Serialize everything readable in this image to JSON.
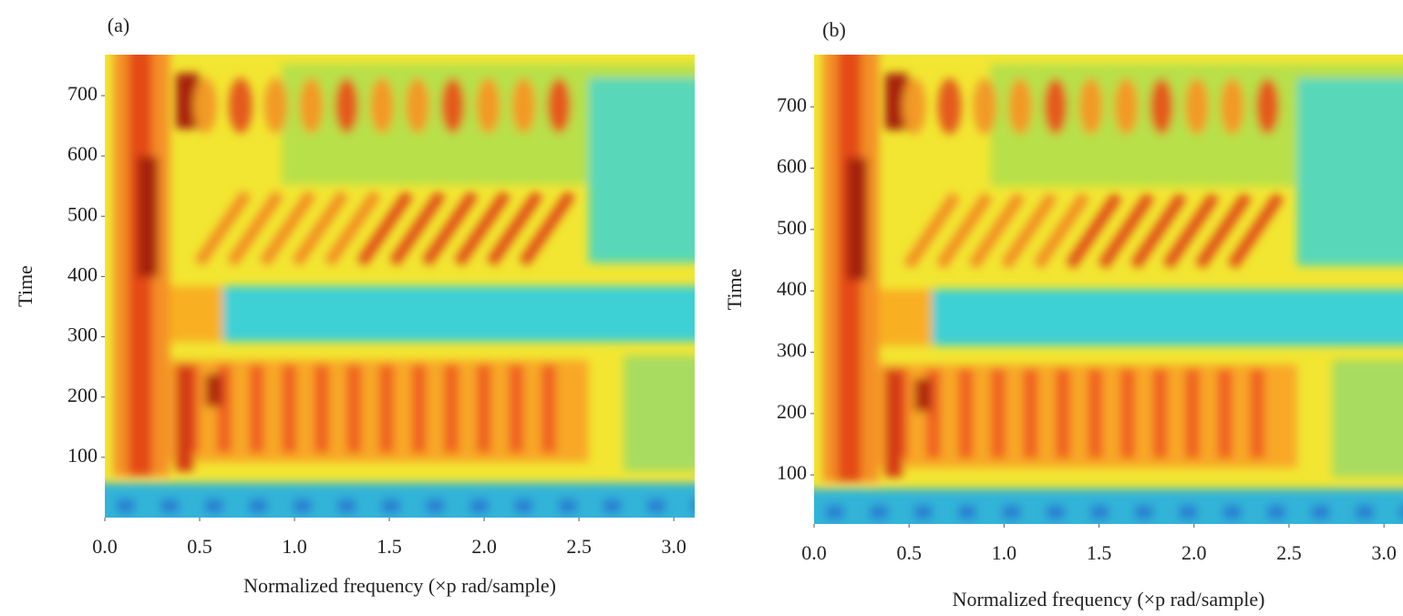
{
  "chart_data": [
    {
      "type": "spectrogram",
      "title": "(a)",
      "x_label": "Normalized frequency (×p rad/sample)",
      "y_label": "Time",
      "xlim": [
        0,
        3.11
      ],
      "ylim": [
        0,
        768
      ],
      "xticks": [
        {
          "value": 0,
          "label": "0.0"
        },
        0.5,
        {
          "value": 1,
          "label": "1.0"
        },
        1.5,
        {
          "value": 2,
          "label": "2.0"
        },
        2.5,
        {
          "value": 3,
          "label": "3.0"
        }
      ],
      "yticks": [
        100,
        200,
        300,
        400,
        500,
        600,
        700
      ]
    },
    {
      "type": "spectrogram",
      "title": "(b)",
      "x_label": "Normalized frequency (×p rad/sample)",
      "y_label": "Time",
      "xlim": [
        0,
        3.1
      ],
      "ylim": [
        20,
        785
      ],
      "xticks": [
        {
          "value": 0,
          "label": "0.0"
        },
        0.5,
        {
          "value": 1,
          "label": "1.0"
        },
        1.5,
        {
          "value": 2,
          "label": "2.0"
        },
        2.5,
        {
          "value": 3,
          "label": "3.0"
        }
      ],
      "yticks": [
        100,
        200,
        300,
        400,
        500,
        600,
        700
      ]
    }
  ]
}
